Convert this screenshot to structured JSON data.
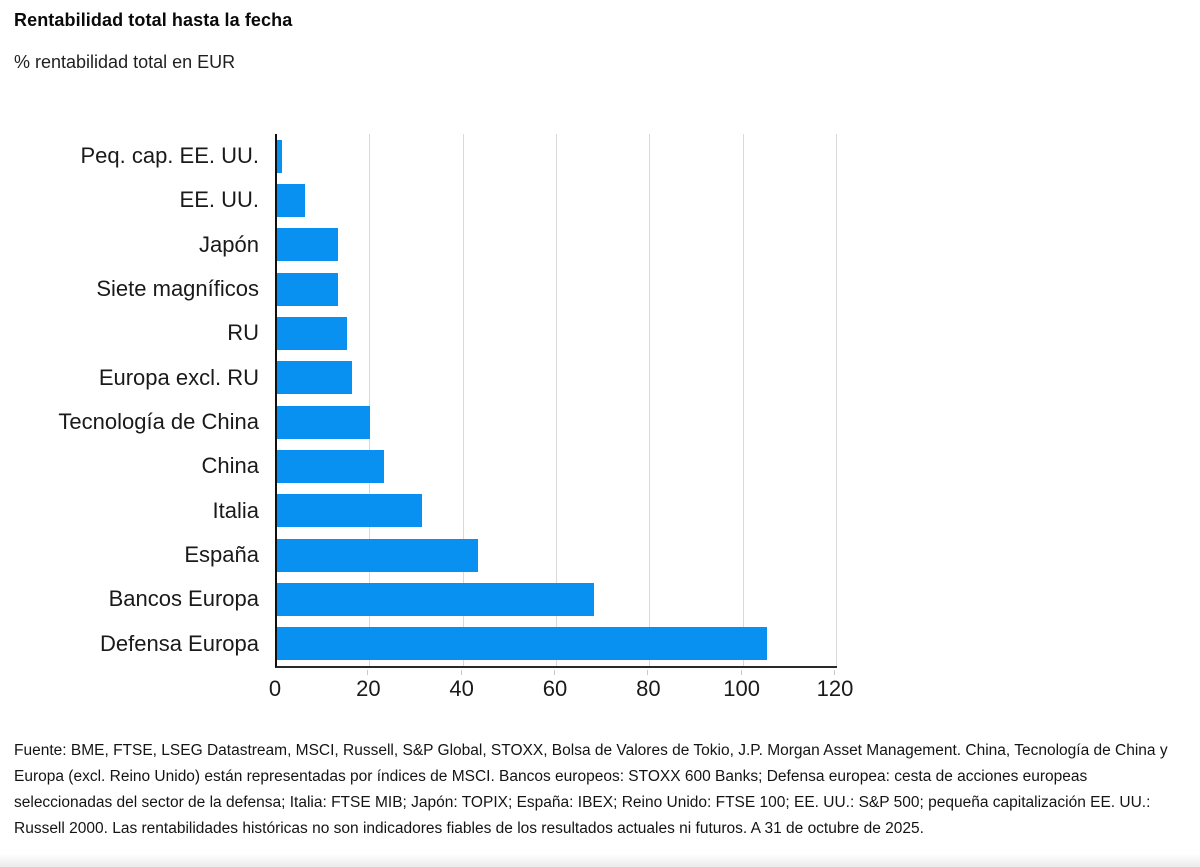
{
  "header": {
    "title": "Rentabilidad total hasta la fecha",
    "subtitle": "% rentabilidad total en EUR"
  },
  "chart_data": {
    "type": "bar",
    "orientation": "horizontal",
    "title": "Rentabilidad total hasta la fecha",
    "subtitle": "% rentabilidad total en EUR",
    "categories": [
      "Peq. cap. EE. UU.",
      "EE. UU.",
      "Japón",
      "Siete magníficos",
      "RU",
      "Europa excl. RU",
      "Tecnología de China",
      "China",
      "Italia",
      "España",
      "Bancos Europa",
      "Defensa Europa"
    ],
    "values": [
      1,
      6,
      13,
      13,
      15,
      16,
      20,
      23,
      31,
      43,
      68,
      105
    ],
    "xlim": [
      0,
      120
    ],
    "xticks": [
      0,
      20,
      40,
      60,
      80,
      100,
      120
    ],
    "grid": "vertical",
    "legend": "none",
    "bar_color": "#0991f2"
  },
  "colors": {
    "bar": "#0991f2",
    "grid": "#d9d9d9",
    "axis": "#101010",
    "text": "#141414"
  },
  "footnote": {
    "text": "Fuente: BME, FTSE, LSEG Datastream, MSCI, Russell, S&P Global, STOXX, Bolsa de Valores de Tokio, J.P. Morgan Asset Management. China, Tecnología de China y Europa (excl. Reino Unido) están representadas por índices de MSCI. Bancos europeos: STOXX 600 Banks; Defensa europea: cesta de acciones europeas seleccionadas del sector de la defensa; Italia: FTSE MIB; Japón: TOPIX; España: IBEX; Reino Unido: FTSE 100; EE. UU.: S&P 500; pequeña capitalización EE. UU.: Russell 2000. Las rentabilidades históricas no son indicadores fiables de los resultados actuales ni futuros. A 31 de octubre de 2025."
  }
}
